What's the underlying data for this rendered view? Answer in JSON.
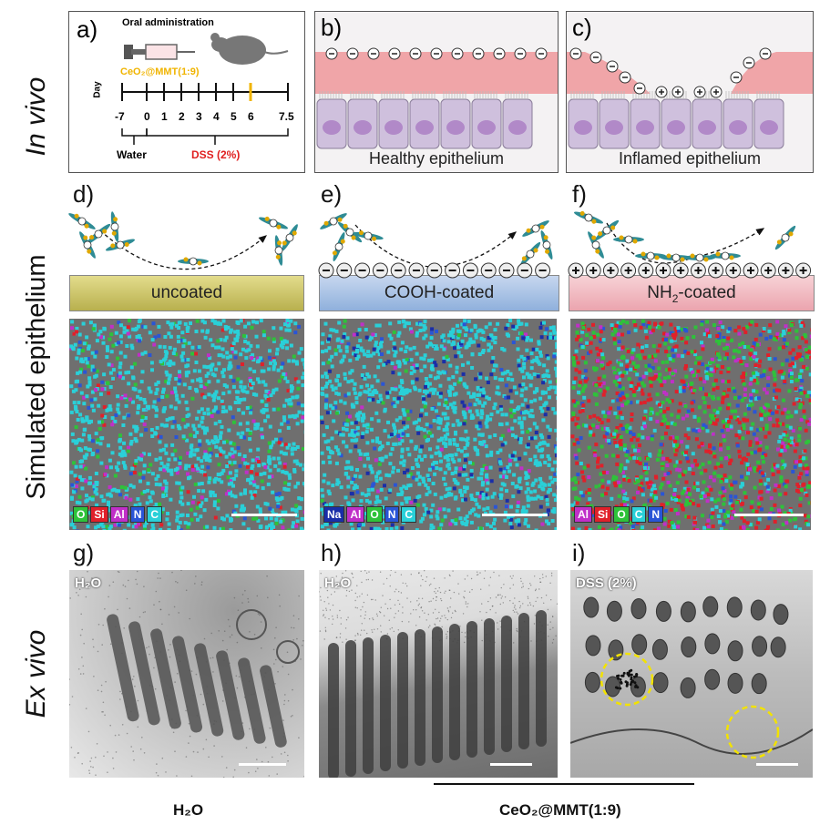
{
  "rows": {
    "row1": "In vivo",
    "row2": "Simulated epithelium",
    "row3": "Ex vivo"
  },
  "panel_a": {
    "label": "a)",
    "title": "Oral administration",
    "drug": "CeO₂@MMT(1:9)",
    "axis_label": "Day",
    "ticks": [
      "-7",
      "0",
      "1",
      "2",
      "3",
      "4",
      "5",
      "6",
      "7.5"
    ],
    "water": "Water",
    "dss": "DSS (2%)"
  },
  "panel_b": {
    "label": "b)",
    "caption": "Healthy epithelium"
  },
  "panel_c": {
    "label": "c)",
    "caption": "Inflamed epithelium"
  },
  "panel_d": {
    "label": "d)",
    "surface": "uncoated",
    "legend": [
      "O",
      "Si",
      "Al",
      "N",
      "C"
    ]
  },
  "panel_e": {
    "label": "e)",
    "surface": "COOH-coated",
    "legend": [
      "Na",
      "Al",
      "O",
      "N",
      "C"
    ]
  },
  "panel_f": {
    "label": "f)",
    "surface_pre": "NH",
    "surface_sub": "2",
    "surface_post": "-coated",
    "legend": [
      "Al",
      "Si",
      "O",
      "C",
      "N"
    ]
  },
  "panel_g": {
    "label": "g)",
    "tag": "H₂O"
  },
  "panel_h": {
    "label": "h)",
    "tag": "H₂O"
  },
  "panel_i": {
    "label": "i)",
    "tag": "DSS (2%)"
  },
  "bottom": {
    "left": "H₂O",
    "right": "CeO₂@MMT(1:9)"
  },
  "colors": {
    "mucus": "#f0a5a8",
    "cell": "#cfc0dd",
    "nucleus": "#b189c8",
    "uncoated": "#c9c26a",
    "cooh": "#9db8de",
    "nh2": "#f1b9c0",
    "O": "#2ec23a",
    "Si": "#e0202a",
    "Al": "#c02fc8",
    "N": "#2a55d6",
    "C": "#2ad0d8",
    "Na": "#1a2ea8",
    "dss_text": "#e02020",
    "drug_text": "#f0b400",
    "circle": "#f2e200"
  }
}
